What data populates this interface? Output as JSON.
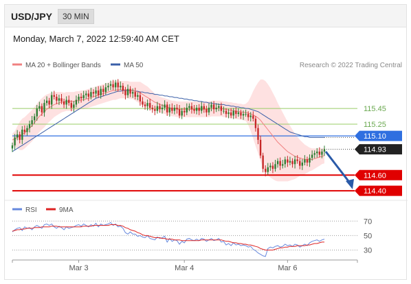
{
  "header": {
    "symbol": "USD/JPY",
    "timeframe": "30 MIN"
  },
  "datetime": "Monday, March 7, 2022 12:59:40 AM CET",
  "colors": {
    "ma20": "#f08080",
    "ma50": "#3a5fa8",
    "bollinger": "#fdd7d7",
    "candle_up": "#2e7d32",
    "candle_down": "#c62828",
    "green_level": "#99cc66",
    "blue_level": "#2f6fe0",
    "red_level": "#e00000",
    "current": "#222222",
    "rsi": "#6688dd",
    "rsi_ma": "#dd2222"
  },
  "chart_data": [
    {
      "type": "candlestick",
      "legend": [
        {
          "name": "MA 20 + Bollinger Bands",
          "color": "#f08080"
        },
        {
          "name": "MA 50",
          "color": "#3a5fa8"
        }
      ],
      "credit": "Research © 2022 Trading Central",
      "x_ticks": [
        "Mar 3",
        "Mar 4",
        "Mar 6"
      ],
      "ylim": [
        114.34,
        115.88
      ],
      "close": [
        114.98,
        115.08,
        115.12,
        115.05,
        115.18,
        115.15,
        115.2,
        115.25,
        115.3,
        115.35,
        115.45,
        115.48,
        115.4,
        115.52,
        115.55,
        115.5,
        115.62,
        115.6,
        115.55,
        115.58,
        115.54,
        115.5,
        115.56,
        115.52,
        115.46,
        115.5,
        115.56,
        115.6,
        115.58,
        115.62,
        115.64,
        115.6,
        115.66,
        115.64,
        115.68,
        115.62,
        115.7,
        115.66,
        115.72,
        115.74,
        115.76,
        115.72,
        115.78,
        115.72,
        115.74,
        115.68,
        115.62,
        115.7,
        115.64,
        115.66,
        115.6,
        115.62,
        115.54,
        115.5,
        115.48,
        115.52,
        115.46,
        115.44,
        115.42,
        115.48,
        115.44,
        115.46,
        115.5,
        115.4,
        115.46,
        115.42,
        115.46,
        115.44,
        115.36,
        115.42,
        115.4,
        115.46,
        115.48,
        115.44,
        115.42,
        115.46,
        115.42,
        115.48,
        115.44,
        115.4,
        115.46,
        115.5,
        115.44,
        115.46,
        115.48,
        115.42,
        115.42,
        115.38,
        115.4,
        115.36,
        115.42,
        115.38,
        115.4,
        115.36,
        115.38,
        115.38,
        115.34,
        115.36,
        115.32,
        115.2,
        115.05,
        114.85,
        114.68,
        114.64,
        114.7,
        114.72,
        114.68,
        114.74,
        114.78,
        114.72,
        114.74,
        114.8,
        114.76,
        114.78,
        114.74,
        114.8,
        114.78,
        114.72,
        114.76,
        114.8,
        114.76,
        114.82,
        114.86,
        114.88,
        114.9,
        114.86,
        114.9,
        114.93
      ],
      "ma20": [
        115.05,
        115.06,
        115.08,
        115.1,
        115.12,
        115.14,
        115.17,
        115.2,
        115.23,
        115.27,
        115.31,
        115.35,
        115.38,
        115.41,
        115.44,
        115.46,
        115.48,
        115.5,
        115.51,
        115.52,
        115.53,
        115.53,
        115.54,
        115.54,
        115.54,
        115.54,
        115.55,
        115.55,
        115.56,
        115.56,
        115.57,
        115.58,
        115.59,
        115.6,
        115.61,
        115.62,
        115.63,
        115.64,
        115.65,
        115.66,
        115.67,
        115.68,
        115.68,
        115.69,
        115.69,
        115.69,
        115.69,
        115.69,
        115.68,
        115.68,
        115.67,
        115.66,
        115.65,
        115.63,
        115.61,
        115.59,
        115.57,
        115.55,
        115.53,
        115.52,
        115.5,
        115.49,
        115.48,
        115.47,
        115.46,
        115.45,
        115.45,
        115.44,
        115.44,
        115.44,
        115.44,
        115.44,
        115.44,
        115.44,
        115.44,
        115.44,
        115.44,
        115.44,
        115.44,
        115.44,
        115.44,
        115.45,
        115.45,
        115.45,
        115.45,
        115.45,
        115.44,
        115.44,
        115.43,
        115.43,
        115.42,
        115.42,
        115.41,
        115.41,
        115.4,
        115.4,
        115.39,
        115.38,
        115.37,
        115.35,
        115.33,
        115.3,
        115.26,
        115.22,
        115.18,
        115.14,
        115.1,
        115.06,
        115.02,
        114.99,
        114.96,
        114.93,
        114.9,
        114.88,
        114.86,
        114.84,
        114.83,
        114.82,
        114.81,
        114.8,
        114.8,
        114.8,
        114.8,
        114.81,
        114.82,
        114.83,
        114.84,
        114.85
      ],
      "ma50": [
        114.9,
        114.92,
        114.94,
        114.96,
        114.98,
        115.0,
        115.02,
        115.04,
        115.06,
        115.08,
        115.1,
        115.12,
        115.14,
        115.16,
        115.18,
        115.2,
        115.22,
        115.24,
        115.26,
        115.28,
        115.3,
        115.32,
        115.34,
        115.36,
        115.38,
        115.4,
        115.42,
        115.44,
        115.46,
        115.48,
        115.5,
        115.52,
        115.54,
        115.56,
        115.58,
        115.59,
        115.6,
        115.61,
        115.62,
        115.63,
        115.64,
        115.65,
        115.66,
        115.67,
        115.67,
        115.68,
        115.68,
        115.68,
        115.68,
        115.68,
        115.67,
        115.67,
        115.66,
        115.66,
        115.65,
        115.65,
        115.64,
        115.64,
        115.63,
        115.63,
        115.62,
        115.62,
        115.61,
        115.61,
        115.6,
        115.6,
        115.59,
        115.59,
        115.58,
        115.58,
        115.57,
        115.57,
        115.56,
        115.56,
        115.55,
        115.55,
        115.54,
        115.54,
        115.53,
        115.53,
        115.52,
        115.52,
        115.51,
        115.51,
        115.5,
        115.5,
        115.5,
        115.49,
        115.49,
        115.48,
        115.48,
        115.47,
        115.47,
        115.46,
        115.46,
        115.45,
        115.45,
        115.44,
        115.43,
        115.42,
        115.41,
        115.39,
        115.37,
        115.35,
        115.33,
        115.31,
        115.29,
        115.27,
        115.25,
        115.23,
        115.21,
        115.19,
        115.17,
        115.15,
        115.14,
        115.13,
        115.12,
        115.11,
        115.1,
        115.09,
        115.09,
        115.08,
        115.08,
        115.08,
        115.08,
        115.08,
        115.08,
        115.08
      ],
      "bb_width": [
        0.08,
        0.1,
        0.14,
        0.18,
        0.2,
        0.2,
        0.2,
        0.2,
        0.2,
        0.2,
        0.2,
        0.2,
        0.2,
        0.2,
        0.19,
        0.18,
        0.17,
        0.16,
        0.15,
        0.14,
        0.13,
        0.12,
        0.12,
        0.12,
        0.12,
        0.12,
        0.12,
        0.12,
        0.12,
        0.12,
        0.12,
        0.12,
        0.12,
        0.12,
        0.12,
        0.12,
        0.12,
        0.12,
        0.12,
        0.12,
        0.12,
        0.12,
        0.12,
        0.12,
        0.11,
        0.11,
        0.11,
        0.11,
        0.11,
        0.11,
        0.12,
        0.13,
        0.14,
        0.14,
        0.14,
        0.14,
        0.13,
        0.12,
        0.11,
        0.1,
        0.1,
        0.1,
        0.1,
        0.1,
        0.1,
        0.1,
        0.1,
        0.1,
        0.1,
        0.1,
        0.1,
        0.1,
        0.1,
        0.1,
        0.1,
        0.1,
        0.1,
        0.1,
        0.1,
        0.1,
        0.1,
        0.1,
        0.1,
        0.1,
        0.1,
        0.1,
        0.1,
        0.1,
        0.1,
        0.1,
        0.1,
        0.1,
        0.1,
        0.1,
        0.1,
        0.11,
        0.15,
        0.22,
        0.3,
        0.38,
        0.45,
        0.52,
        0.56,
        0.58,
        0.58,
        0.57,
        0.55,
        0.53,
        0.5,
        0.47,
        0.44,
        0.41,
        0.38,
        0.35,
        0.32,
        0.29,
        0.26,
        0.23,
        0.21,
        0.19,
        0.17,
        0.15,
        0.14,
        0.13,
        0.12,
        0.11,
        0.1,
        0.1,
        0.1,
        0.1
      ],
      "levels": [
        {
          "value": 115.45,
          "label": "115.45",
          "kind": "resistance"
        },
        {
          "value": 115.25,
          "label": "115.25",
          "kind": "resistance"
        },
        {
          "value": 115.1,
          "label": "115.10",
          "kind": "pivot"
        },
        {
          "value": 114.93,
          "label": "114.93",
          "kind": "current"
        },
        {
          "value": 114.6,
          "label": "114.60",
          "kind": "support"
        },
        {
          "value": 114.4,
          "label": "114.40",
          "kind": "support"
        }
      ],
      "forecast_arrow": {
        "from": 114.9,
        "to": 114.42
      }
    },
    {
      "type": "line",
      "legend": [
        {
          "name": "RSI",
          "color": "#6688dd"
        },
        {
          "name": "9MA",
          "color": "#dd2222"
        }
      ],
      "ylim": [
        20,
        75
      ],
      "y_ticks": [
        70,
        50,
        30
      ],
      "rsi": [
        55,
        58,
        60,
        61,
        57,
        62,
        60,
        61,
        58,
        62,
        64,
        62,
        60,
        65,
        66,
        64,
        66,
        62,
        60,
        63,
        61,
        58,
        62,
        60,
        61,
        62,
        64,
        65,
        63,
        66,
        64,
        62,
        65,
        63,
        67,
        62,
        66,
        64,
        65,
        66,
        68,
        64,
        66,
        62,
        63,
        60,
        54,
        52,
        55,
        52,
        52,
        49,
        50,
        48,
        47,
        50,
        46,
        45,
        44,
        48,
        46,
        47,
        49,
        41,
        46,
        42,
        44,
        43,
        38,
        42,
        40,
        45,
        46,
        44,
        43,
        45,
        43,
        46,
        45,
        42,
        44,
        46,
        43,
        44,
        46,
        41,
        42,
        37,
        39,
        36,
        40,
        37,
        38,
        36,
        37,
        36,
        34,
        35,
        31,
        29,
        26,
        24,
        22,
        21,
        32,
        34,
        33,
        35,
        36,
        34,
        35,
        38,
        36,
        37,
        35,
        38,
        37,
        34,
        36,
        38,
        36,
        40,
        42,
        43,
        44,
        42,
        44,
        45
      ],
      "ma9": [
        56,
        57,
        58,
        58,
        59,
        59,
        60,
        60,
        60,
        61,
        61,
        61,
        62,
        62,
        62,
        62,
        63,
        63,
        63,
        62,
        62,
        62,
        62,
        62,
        62,
        62,
        62,
        62,
        62,
        63,
        63,
        63,
        63,
        64,
        64,
        64,
        64,
        64,
        64,
        64,
        65,
        65,
        65,
        64,
        64,
        63,
        61,
        60,
        58,
        57,
        56,
        54,
        53,
        51,
        50,
        50,
        49,
        48,
        47,
        47,
        47,
        46,
        46,
        45,
        45,
        45,
        44,
        44,
        44,
        43,
        43,
        43,
        43,
        43,
        43,
        43,
        43,
        44,
        44,
        44,
        44,
        44,
        44,
        44,
        44,
        44,
        43,
        42,
        42,
        41,
        40,
        40,
        39,
        39,
        38,
        38,
        37,
        37,
        36,
        35,
        34,
        32,
        31,
        30,
        30,
        30,
        30,
        31,
        32,
        33,
        33,
        34,
        34,
        35,
        35,
        35,
        36,
        36,
        36,
        36,
        37,
        37,
        38,
        39,
        39,
        40,
        41,
        41
      ]
    }
  ]
}
